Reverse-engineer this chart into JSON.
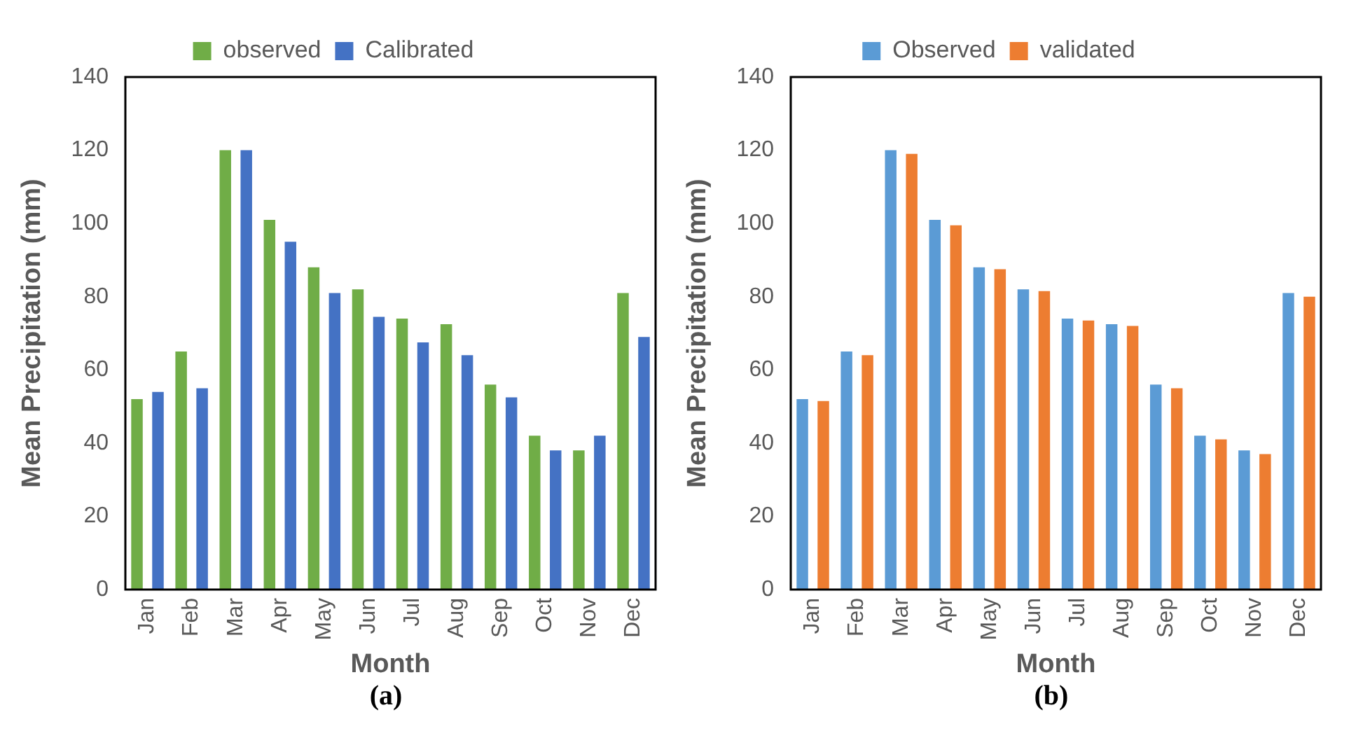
{
  "chart_data": [
    {
      "type": "bar",
      "xlabel": "Month",
      "ylabel": "Mean Precipitation (mm)",
      "annotations": [
        "(a)"
      ],
      "categories": [
        "Jan",
        "Feb",
        "Mar",
        "Apr",
        "May",
        "Jun",
        "Jul",
        "Aug",
        "Sep",
        "Oct",
        "Nov",
        "Dec"
      ],
      "series": [
        {
          "name": "observed",
          "color": "#70ad47",
          "values": [
            52,
            65,
            120,
            101,
            88,
            82,
            74,
            72.5,
            56,
            42,
            38,
            81
          ]
        },
        {
          "name": "Calibrated",
          "color": "#4472c4",
          "values": [
            54,
            55,
            120,
            95,
            81,
            74.5,
            67.5,
            64,
            52.5,
            38,
            42,
            69
          ]
        }
      ],
      "ylim": [
        0,
        140
      ],
      "yticks": [
        0,
        20,
        40,
        60,
        80,
        100,
        120,
        140
      ],
      "grid": false,
      "legend": "top"
    },
    {
      "type": "bar",
      "xlabel": "Month",
      "ylabel": "Mean Precipitation (mm)",
      "annotations": [
        "(b)"
      ],
      "categories": [
        "Jan",
        "Feb",
        "Mar",
        "Apr",
        "May",
        "Jun",
        "Jul",
        "Aug",
        "Sep",
        "Oct",
        "Nov",
        "Dec"
      ],
      "series": [
        {
          "name": "Observed",
          "color": "#5b9bd5",
          "values": [
            52,
            65,
            120,
            101,
            88,
            82,
            74,
            72.5,
            56,
            42,
            38,
            81
          ]
        },
        {
          "name": "validated",
          "color": "#ed7d31",
          "values": [
            51.5,
            64,
            119,
            99.5,
            87.5,
            81.5,
            73.5,
            72,
            55,
            41,
            37,
            80
          ]
        }
      ],
      "ylim": [
        0,
        140
      ],
      "yticks": [
        0,
        20,
        40,
        60,
        80,
        100,
        120,
        140
      ],
      "grid": false,
      "legend": "top"
    }
  ]
}
